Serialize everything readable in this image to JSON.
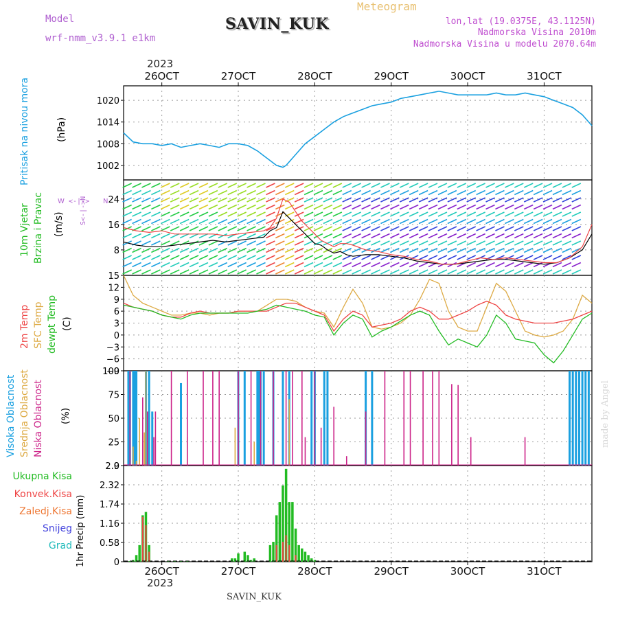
{
  "header": {
    "model_label": "Model",
    "model_name": "wrf-nmm_v3.9.1 e1km",
    "station_title": "SAVIN_KUK",
    "product": "Meteogram",
    "lonlat": "lon,lat (19.0375E, 43.1125N)",
    "elevation": "Nadmorska Visina 2010m",
    "elevation_model": "Nadmorska Visina u modelu 2070.64m",
    "year_top": "2023",
    "year_bottom": "2023",
    "footer_station": "SAVIN_KUK",
    "watermark": "made by Angel"
  },
  "colors": {
    "model": "#b060d0",
    "title_meta": "#e8c070",
    "info": "#c050d0",
    "pressure": "#1aa0e0",
    "wind": "#22bb22",
    "temp": "#ee4444",
    "sfc": "#ddaa44",
    "dew": "#22bb22",
    "high": "#1aa0e0",
    "mid": "#ddaa44",
    "low": "#cc2288",
    "rain": "#22bb22",
    "conv": "#ee4444",
    "frozen": "#ee7733",
    "snow": "#4444dd",
    "hail": "#22bbbb"
  },
  "chart_data": [
    {
      "type": "line",
      "panel": "pressure",
      "ylabel_name": "Pritisak na nivou mora",
      "ylabel_unit": "(hPa)",
      "x_ticks": [
        "26OCT",
        "27OCT",
        "28OCT",
        "29OCT",
        "30OCT",
        "31OCT"
      ],
      "yticks": [
        1002,
        1008,
        1014,
        1020
      ],
      "ylim": [
        998,
        1024
      ],
      "grid": true,
      "series": [
        {
          "t": [
            0,
            3,
            6,
            9,
            12,
            15,
            18,
            21,
            24,
            27,
            30,
            33,
            36,
            39,
            42,
            45,
            48,
            50,
            51,
            54,
            57,
            60,
            63,
            66,
            69,
            72,
            75,
            78,
            81,
            84,
            87,
            90,
            93,
            96,
            99,
            102,
            105,
            108,
            111,
            114,
            117,
            120,
            123,
            126,
            129,
            132,
            135,
            138,
            141,
            144,
            147
          ],
          "values": [
            1011,
            1008.5,
            1008,
            1008,
            1007.5,
            1008,
            1007,
            1007.5,
            1008,
            1007.5,
            1007,
            1008,
            1008,
            1007.5,
            1006,
            1004,
            1002,
            1001.5,
            1002,
            1005,
            1008,
            1010,
            1012,
            1014,
            1015.5,
            1016.5,
            1017.5,
            1018.5,
            1019,
            1019.5,
            1020.5,
            1021,
            1021.5,
            1022,
            1022.5,
            1022,
            1021.5,
            1021.5,
            1021.5,
            1021.5,
            1022,
            1021.5,
            1021.5,
            1022,
            1021.5,
            1021,
            1020,
            1019,
            1018,
            1016,
            1013
          ]
        }
      ]
    },
    {
      "type": "line",
      "panel": "wind",
      "ylabel_name1": "10m Vjetar",
      "ylabel_name2": "Brzina i Pravac",
      "ylabel_unit": "(m/s)",
      "compass_w": "W",
      "compass_n": "N",
      "compass_arrow": "<-|->",
      "compass_axis": "S<-|->N",
      "yticks": [
        8,
        16,
        24
      ],
      "ylim": [
        0,
        30
      ],
      "grid": true,
      "series": [
        {
          "t": [
            0,
            4,
            8,
            12,
            16,
            20,
            24,
            28,
            32,
            36,
            40,
            44,
            46,
            48,
            50,
            52,
            54,
            56,
            58,
            60,
            62,
            64,
            66,
            68,
            70,
            72,
            76,
            80,
            84,
            88,
            92,
            96,
            100,
            104,
            108,
            112,
            116,
            120,
            124,
            128,
            132,
            136,
            140,
            144,
            147
          ],
          "values": [
            10.5,
            9.5,
            9,
            9,
            9.5,
            10,
            10.5,
            11,
            10.5,
            11,
            11.5,
            12,
            14,
            15,
            20,
            18,
            16,
            14,
            12,
            10,
            9.5,
            8,
            7,
            7.5,
            6.5,
            6,
            6.5,
            6.5,
            6,
            5.5,
            4.5,
            4,
            3.5,
            3.5,
            4,
            4.5,
            5,
            5,
            4.5,
            4,
            3.5,
            4,
            5.5,
            8,
            13
          ]
        },
        {
          "t": [
            0,
            4,
            8,
            12,
            16,
            20,
            24,
            28,
            32,
            36,
            40,
            44,
            46,
            48,
            50,
            52,
            54,
            56,
            58,
            60,
            62,
            64,
            66,
            68,
            70,
            72,
            76,
            80,
            84,
            88,
            92,
            96,
            100,
            104,
            108,
            112,
            116,
            120,
            124,
            128,
            132,
            136,
            140,
            144,
            147
          ],
          "values": [
            15,
            14,
            13.5,
            14,
            13,
            13,
            13,
            13,
            12.5,
            13,
            13.5,
            14,
            15,
            18,
            24,
            23,
            20,
            17,
            15,
            13,
            11,
            10,
            9,
            10,
            10,
            9.5,
            8,
            7.5,
            6.5,
            6,
            5,
            4.5,
            3.5,
            3.5,
            4.5,
            5.5,
            5,
            5.5,
            5,
            4.5,
            4,
            4,
            5.5,
            9,
            16
          ]
        }
      ]
    },
    {
      "type": "line",
      "panel": "temperature",
      "ylabel_name1": "2m Temp",
      "ylabel_name2": "SFC Temp",
      "ylabel_name3": "dewpt Temp",
      "ylabel_unit": "(C)",
      "yticks": [
        -9,
        -6,
        -3,
        0,
        3,
        6,
        9,
        12,
        15
      ],
      "ylim": [
        -9,
        15
      ],
      "grid": true,
      "series": [
        {
          "name": "2m Temp",
          "t": [
            0,
            3,
            6,
            9,
            12,
            15,
            18,
            21,
            24,
            27,
            30,
            33,
            36,
            39,
            42,
            45,
            48,
            51,
            54,
            57,
            60,
            63,
            66,
            69,
            72,
            75,
            78,
            81,
            84,
            87,
            90,
            93,
            96,
            99,
            102,
            105,
            108,
            111,
            114,
            117,
            120,
            123,
            126,
            129,
            132,
            135,
            138,
            141,
            144,
            147
          ],
          "values": [
            8,
            7,
            6.5,
            6,
            5,
            4.5,
            4.5,
            5.5,
            6,
            5.5,
            5.5,
            5.5,
            6,
            6,
            6,
            6,
            7,
            8,
            8,
            7,
            6,
            5,
            1,
            4,
            6,
            5,
            2,
            2.5,
            3,
            4,
            6,
            7,
            6,
            4,
            4,
            5,
            6,
            7.5,
            8.5,
            7.5,
            5,
            4,
            3.5,
            3,
            3,
            3,
            3.5,
            4,
            5,
            6
          ]
        },
        {
          "name": "SFC Temp",
          "t": [
            0,
            3,
            6,
            9,
            12,
            15,
            18,
            21,
            24,
            27,
            30,
            33,
            36,
            39,
            42,
            45,
            48,
            51,
            54,
            57,
            60,
            63,
            66,
            69,
            72,
            75,
            78,
            81,
            84,
            87,
            90,
            93,
            96,
            99,
            102,
            105,
            108,
            111,
            114,
            117,
            120,
            123,
            126,
            129,
            132,
            135,
            138,
            141,
            144,
            147
          ],
          "values": [
            15,
            10,
            8,
            7,
            6,
            5,
            5,
            5.5,
            5.5,
            5,
            5.5,
            5.5,
            6,
            6,
            6,
            7.5,
            9,
            9,
            8.5,
            7,
            6,
            5.5,
            2,
            7,
            11.5,
            8,
            2,
            1.5,
            2,
            3,
            5,
            9,
            14,
            13,
            6,
            2,
            1,
            1,
            7,
            13,
            11,
            6,
            1,
            0,
            -0.5,
            0,
            1,
            4,
            10,
            8
          ]
        },
        {
          "name": "dewpt Temp",
          "t": [
            0,
            3,
            6,
            9,
            12,
            15,
            18,
            21,
            24,
            27,
            30,
            33,
            36,
            39,
            42,
            45,
            48,
            51,
            54,
            57,
            60,
            63,
            66,
            69,
            72,
            75,
            78,
            81,
            84,
            87,
            90,
            93,
            96,
            99,
            102,
            105,
            108,
            111,
            114,
            117,
            120,
            123,
            126,
            129,
            132,
            135,
            138,
            141,
            144,
            147
          ],
          "values": [
            7.5,
            7,
            6.5,
            6,
            5,
            4.5,
            4,
            5,
            5.5,
            5.5,
            5.5,
            5.5,
            5.5,
            5.5,
            6,
            6.5,
            7.5,
            7,
            6.5,
            6,
            5,
            4.5,
            0,
            3,
            5,
            4,
            -0.5,
            1,
            2,
            3.5,
            5,
            6,
            5,
            1,
            -2.5,
            -1,
            -2,
            -3,
            0,
            5,
            3,
            -1,
            -1.5,
            -2,
            -5,
            -7,
            -4,
            0,
            4,
            5.5
          ]
        }
      ]
    },
    {
      "type": "bar",
      "panel": "cloud",
      "ylabel_name1": "Visoka Oblacnost",
      "ylabel_name2": "Srednja Oblacnost",
      "ylabel_name3": "Niska Oblacnost",
      "ylabel_unit": "(%)",
      "yticks": [
        0,
        25,
        50,
        75,
        100
      ],
      "ylim": [
        0,
        100
      ],
      "grid": true,
      "series": [
        {
          "name": "Visoka Oblacnost",
          "t": [
            1.5,
            2,
            3,
            3.5,
            4,
            7,
            8,
            9,
            18,
            36,
            38,
            42,
            42.5,
            43,
            44,
            47,
            50,
            52,
            59,
            60,
            63,
            64,
            76,
            78,
            140,
            141,
            142,
            143,
            144,
            145,
            146
          ],
          "values": [
            100,
            100,
            100,
            100,
            100,
            100,
            100,
            57,
            87,
            100,
            100,
            100,
            100,
            100,
            100,
            100,
            100,
            100,
            100,
            100,
            100,
            100,
            100,
            100,
            100,
            100,
            100,
            100,
            100,
            100,
            100
          ]
        },
        {
          "name": "Srednja Oblacnost",
          "t": [
            3,
            4,
            5,
            6.5,
            7,
            20,
            35,
            41,
            52
          ],
          "values": [
            20,
            5,
            50,
            35,
            100,
            30,
            40,
            25,
            70
          ]
        },
        {
          "name": "Niska Oblacnost",
          "t": [
            2,
            6,
            7.5,
            9.5,
            10,
            15,
            20,
            25,
            28,
            30,
            36,
            40,
            43,
            47,
            51,
            53,
            56,
            57,
            60,
            62,
            66,
            70,
            76,
            82,
            88,
            90,
            94,
            97,
            99,
            103,
            105,
            109,
            126
          ],
          "values": [
            100,
            72,
            57,
            30,
            57,
            100,
            100,
            100,
            100,
            100,
            100,
            100,
            100,
            100,
            100,
            100,
            100,
            30,
            100,
            40,
            62,
            10,
            57,
            100,
            100,
            100,
            100,
            100,
            100,
            86,
            85,
            30,
            30
          ]
        }
      ]
    },
    {
      "type": "bar",
      "panel": "precip",
      "ylabel_name": "1hr Precip (mm)",
      "legend": [
        "Ukupna Kisa",
        "Konvek.Kisa",
        "Zaledj.Kisa",
        "Snijeg",
        "Grad"
      ],
      "yticks": [
        0,
        0.58,
        1.16,
        1.74,
        2.32,
        2.9
      ],
      "ylim": [
        0,
        2.9
      ],
      "grid": true,
      "series": [
        {
          "name": "Ukupna Kisa",
          "t": [
            2,
            3,
            4,
            5,
            6,
            7,
            8,
            14,
            16,
            18,
            20,
            34,
            35,
            36,
            38,
            39,
            40,
            41,
            46,
            47,
            48,
            49,
            50,
            51,
            52,
            53,
            54,
            55,
            56,
            57,
            58,
            59,
            60
          ],
          "values": [
            0.02,
            0.05,
            0.2,
            0.5,
            1.4,
            1.5,
            0.5,
            0.02,
            0.02,
            0.03,
            0.02,
            0.1,
            0.1,
            0.25,
            0.3,
            0.2,
            0.05,
            0.1,
            0.5,
            0.6,
            1.4,
            1.8,
            2.3,
            2.8,
            1.8,
            1.8,
            1.0,
            0.5,
            0.4,
            0.3,
            0.2,
            0.1,
            0.05
          ]
        },
        {
          "name": "Konvek.Kisa",
          "t": [
            6,
            7,
            8,
            48,
            50,
            51,
            52,
            54
          ],
          "values": [
            1.35,
            1.1,
            0.3,
            0.5,
            0.6,
            0.8,
            0.5,
            0.2
          ]
        }
      ]
    }
  ]
}
